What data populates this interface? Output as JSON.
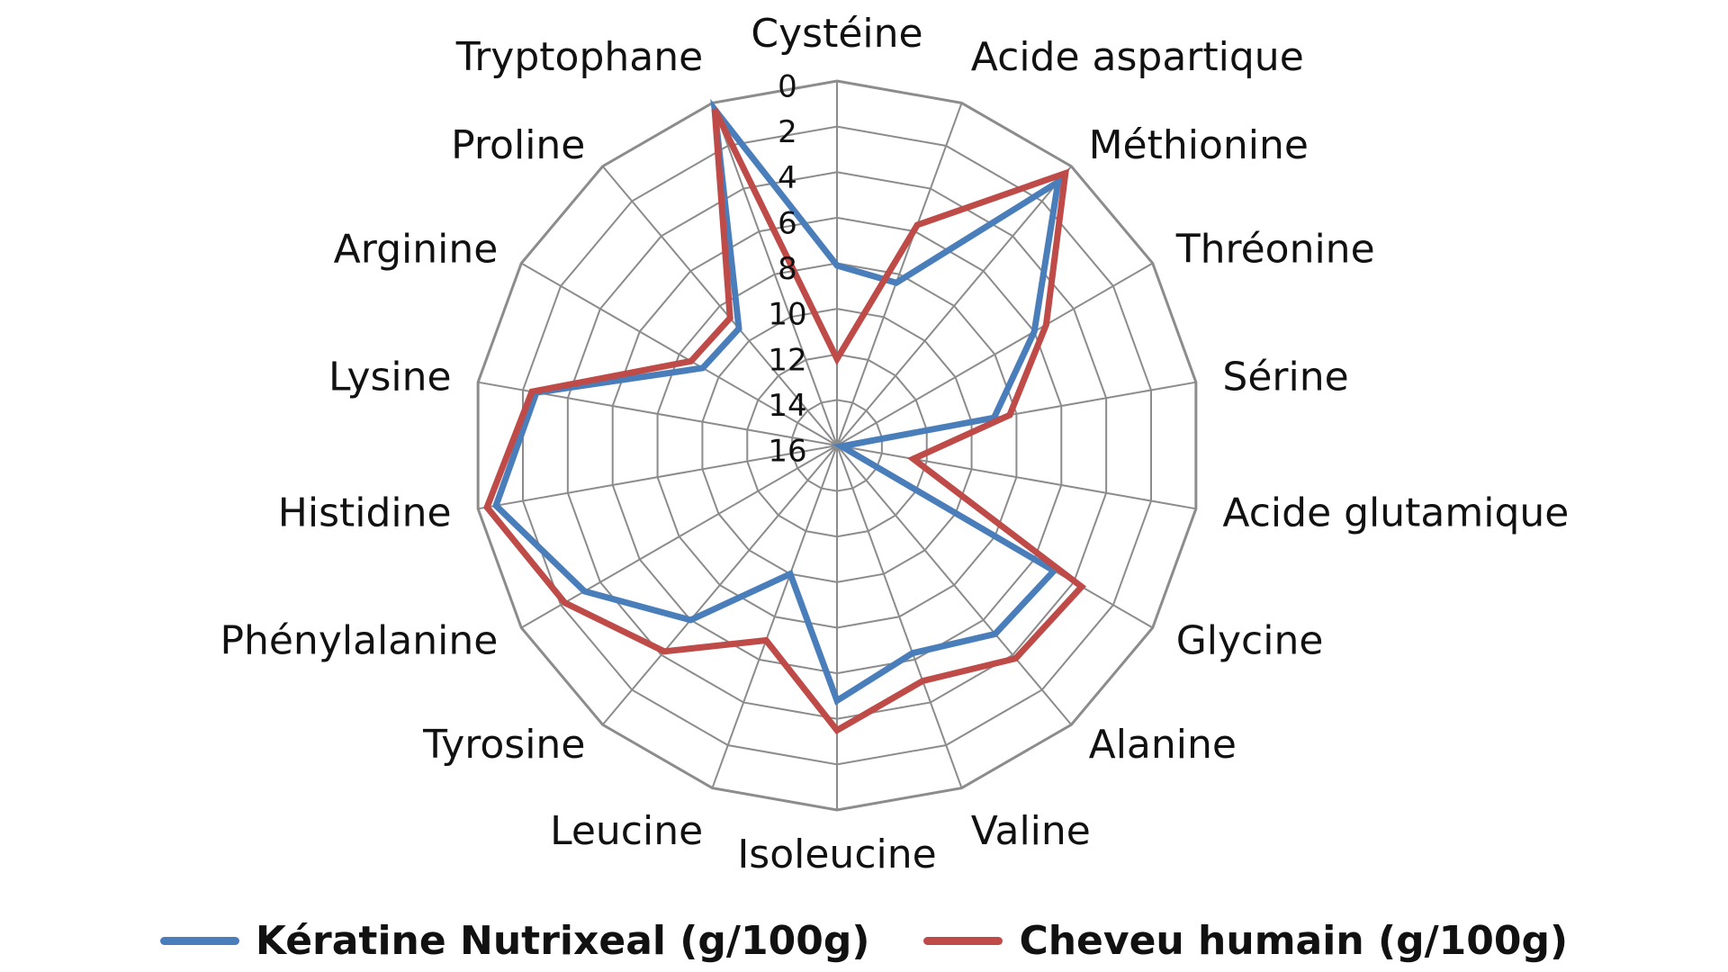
{
  "chart_data": {
    "type": "radar",
    "categories": [
      "Cystéine",
      "Acide aspartique",
      "Méthionine",
      "Thréonine",
      "Sérine",
      "Acide glutamique",
      "Glycine",
      "Alanine",
      "Valine",
      "Isoleucine",
      "Leucine",
      "Tyrosine",
      "Phénylalanine",
      "Histidine",
      "Lysine",
      "Arginine",
      "Proline",
      "Tryptophane"
    ],
    "axis": {
      "min": 0,
      "max": 16,
      "reversed": true,
      "ticks": [
        0,
        2,
        4,
        6,
        8,
        10,
        12,
        14,
        16
      ]
    },
    "grid": true,
    "legend_position": "bottom",
    "series": [
      {
        "name": "Kératine Nutrixeal (g/100g)",
        "color": "#4a7ebb",
        "values": [
          8.1,
          8.4,
          0.9,
          6.0,
          9.0,
          15.8,
          5.0,
          5.2,
          6.3,
          4.8,
          10.0,
          6.0,
          3.2,
          0.8,
          2.6,
          9.2,
          9.3,
          0.3
        ]
      },
      {
        "name": "Cheveu humain (g/100g)",
        "color": "#be4b48",
        "values": [
          12.2,
          5.7,
          0.4,
          5.4,
          8.3,
          12.6,
          3.6,
          3.8,
          5.0,
          3.5,
          6.9,
          4.2,
          2.2,
          0.4,
          2.4,
          8.6,
          8.7,
          0.3
        ]
      }
    ]
  }
}
